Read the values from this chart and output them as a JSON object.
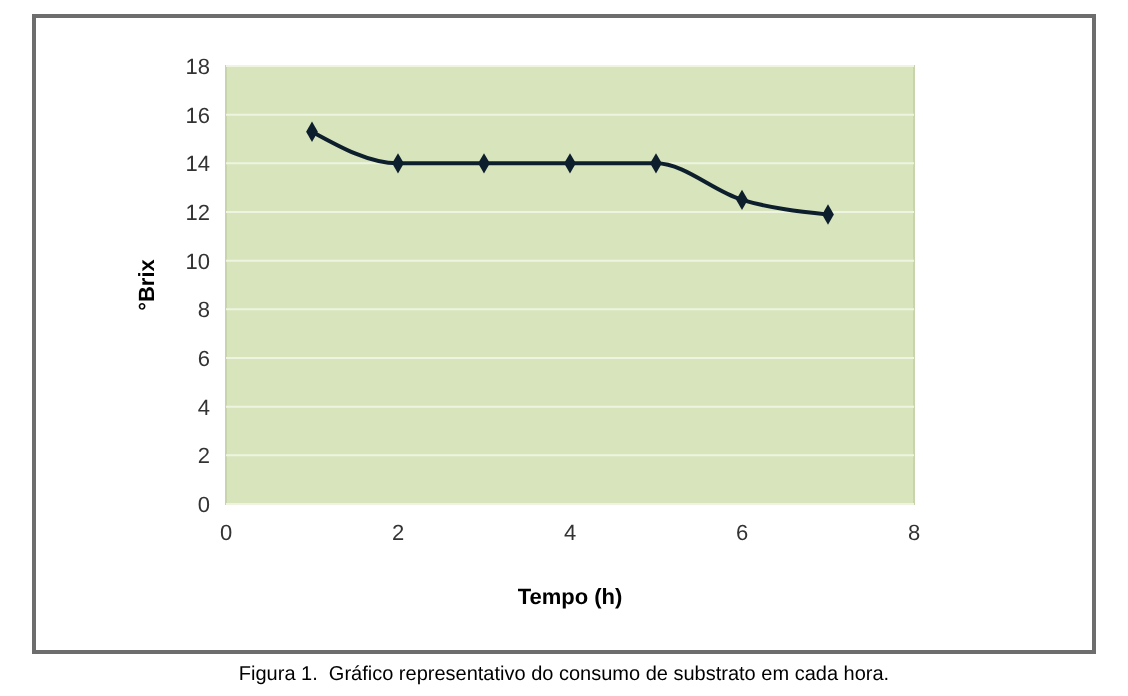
{
  "chart_data": {
    "type": "line",
    "xlabel": "Tempo (h)",
    "ylabel": "°Brix",
    "annotations": [
      "Figura 1.  Gráfico representativo do consumo de substrato em cada hora."
    ],
    "x": [
      1,
      2,
      3,
      4,
      5,
      6,
      7
    ],
    "series": [
      {
        "color": "#0d1f2d",
        "values": [
          15.3,
          14,
          14,
          14,
          14,
          12.5,
          11.9
        ]
      }
    ],
    "xlim": [
      0,
      8
    ],
    "xticks": [
      0,
      2,
      4,
      6,
      8
    ],
    "ylim": [
      0,
      18
    ],
    "yticks": [
      0,
      2,
      4,
      6,
      8,
      10,
      12,
      14,
      16,
      18
    ],
    "grid": "y",
    "marker": "diamond",
    "line_style": "solid"
  }
}
